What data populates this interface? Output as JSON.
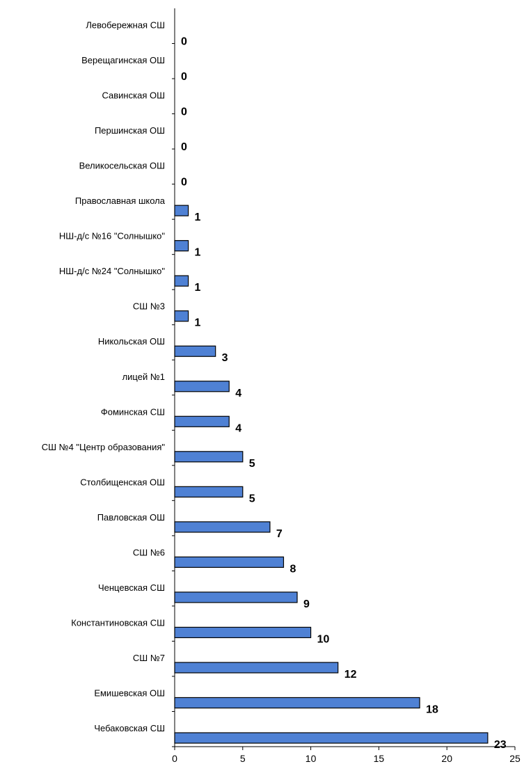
{
  "chart_data": {
    "type": "bar",
    "orientation": "horizontal",
    "categories": [
      "Левобережная  СШ",
      "Верещагинская ОШ",
      "Савинская ОШ",
      "Першинская ОШ",
      "Великосельская ОШ",
      "Православная школа",
      "НШ-д/с №16 \"Солнышко\"",
      "НШ-д/с №24 \"Солнышко\"",
      "СШ №3",
      "Никольская ОШ",
      "лицей №1",
      "Фоминская СШ",
      "СШ №4 \"Центр образования\"",
      "Столбищенская ОШ",
      "Павловская ОШ",
      "СШ №6",
      "Ченцевская СШ",
      "Константиновская СШ",
      "СШ №7",
      "Емишевская ОШ",
      "Чебаковская  СШ"
    ],
    "values": [
      0,
      0,
      0,
      0,
      0,
      1,
      1,
      1,
      1,
      3,
      4,
      4,
      5,
      5,
      7,
      8,
      9,
      10,
      12,
      18,
      23
    ],
    "value_labels": [
      "0",
      "0",
      "0",
      "0",
      "0",
      "1",
      "1",
      "1",
      "1",
      "3",
      "4",
      "4",
      "5",
      "5",
      "7",
      "8",
      "9",
      "10",
      "12",
      "18",
      "23"
    ],
    "xlim": [
      0,
      25
    ],
    "x_ticks": [
      0,
      5,
      10,
      15,
      20,
      25
    ],
    "x_tick_labels": [
      "0",
      "5",
      "10",
      "15",
      "20",
      "25"
    ],
    "grid": false,
    "legend": "none",
    "bar_color": "#4f81d4",
    "bar_edge_color": "#000000"
  }
}
